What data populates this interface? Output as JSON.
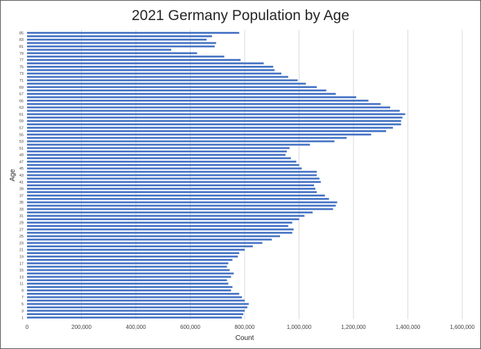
{
  "chart_data": {
    "type": "bar",
    "orientation": "horizontal",
    "title": "2021 Germany Population by Age",
    "xlabel": "Count",
    "ylabel": "Age",
    "xlim": [
      0,
      1600000
    ],
    "x_ticks": [
      0,
      200000,
      400000,
      600000,
      800000,
      1000000,
      1200000,
      1400000,
      1600000
    ],
    "x_tick_labels": [
      "0",
      "200,000",
      "400,000",
      "600,000",
      "800,000",
      "1,000,000",
      "1,200,000",
      "1,400,000",
      "1,600,000"
    ],
    "y_tick_labels": [
      "1",
      "3",
      "5",
      "7",
      "9",
      "11",
      "13",
      "15",
      "17",
      "19",
      "21",
      "23",
      "25",
      "27",
      "29",
      "31",
      "33",
      "35",
      "37",
      "39",
      "41",
      "43",
      "45",
      "47",
      "49",
      "51",
      "53",
      "55",
      "57",
      "59",
      "61",
      "63",
      "65",
      "67",
      "69",
      "71",
      "73",
      "75",
      "77",
      "79",
      "81",
      "83",
      "85"
    ],
    "grid": "vertical",
    "bar_color": "#4472c4",
    "categories": [
      1,
      2,
      3,
      4,
      5,
      6,
      7,
      8,
      9,
      10,
      11,
      12,
      13,
      14,
      15,
      16,
      17,
      18,
      19,
      20,
      21,
      22,
      23,
      24,
      25,
      26,
      27,
      28,
      29,
      30,
      31,
      32,
      33,
      34,
      35,
      36,
      37,
      38,
      39,
      40,
      41,
      42,
      43,
      44,
      45,
      46,
      47,
      48,
      49,
      50,
      51,
      52,
      53,
      54,
      55,
      56,
      57,
      58,
      59,
      60,
      61,
      62,
      63,
      64,
      65,
      66,
      67,
      68,
      69,
      70,
      71,
      72,
      73,
      74,
      75,
      76,
      77,
      78,
      79,
      80,
      81,
      82,
      83,
      84,
      85
    ],
    "values": [
      790000,
      795000,
      800000,
      810000,
      815000,
      800000,
      790000,
      780000,
      750000,
      755000,
      740000,
      735000,
      750000,
      760000,
      745000,
      735000,
      740000,
      755000,
      775000,
      780000,
      800000,
      830000,
      865000,
      900000,
      930000,
      975000,
      980000,
      960000,
      975000,
      1000000,
      1020000,
      1050000,
      1125000,
      1135000,
      1140000,
      1110000,
      1095000,
      1065000,
      1060000,
      1055000,
      1080000,
      1075000,
      1065000,
      1065000,
      1010000,
      1000000,
      990000,
      970000,
      950000,
      955000,
      965000,
      1040000,
      1130000,
      1175000,
      1265000,
      1320000,
      1345000,
      1375000,
      1375000,
      1380000,
      1390000,
      1370000,
      1335000,
      1300000,
      1255000,
      1210000,
      1135000,
      1100000,
      1065000,
      1025000,
      995000,
      960000,
      935000,
      910000,
      905000,
      870000,
      785000,
      725000,
      625000,
      530000,
      690000,
      695000,
      660000,
      680000,
      780000
    ]
  }
}
